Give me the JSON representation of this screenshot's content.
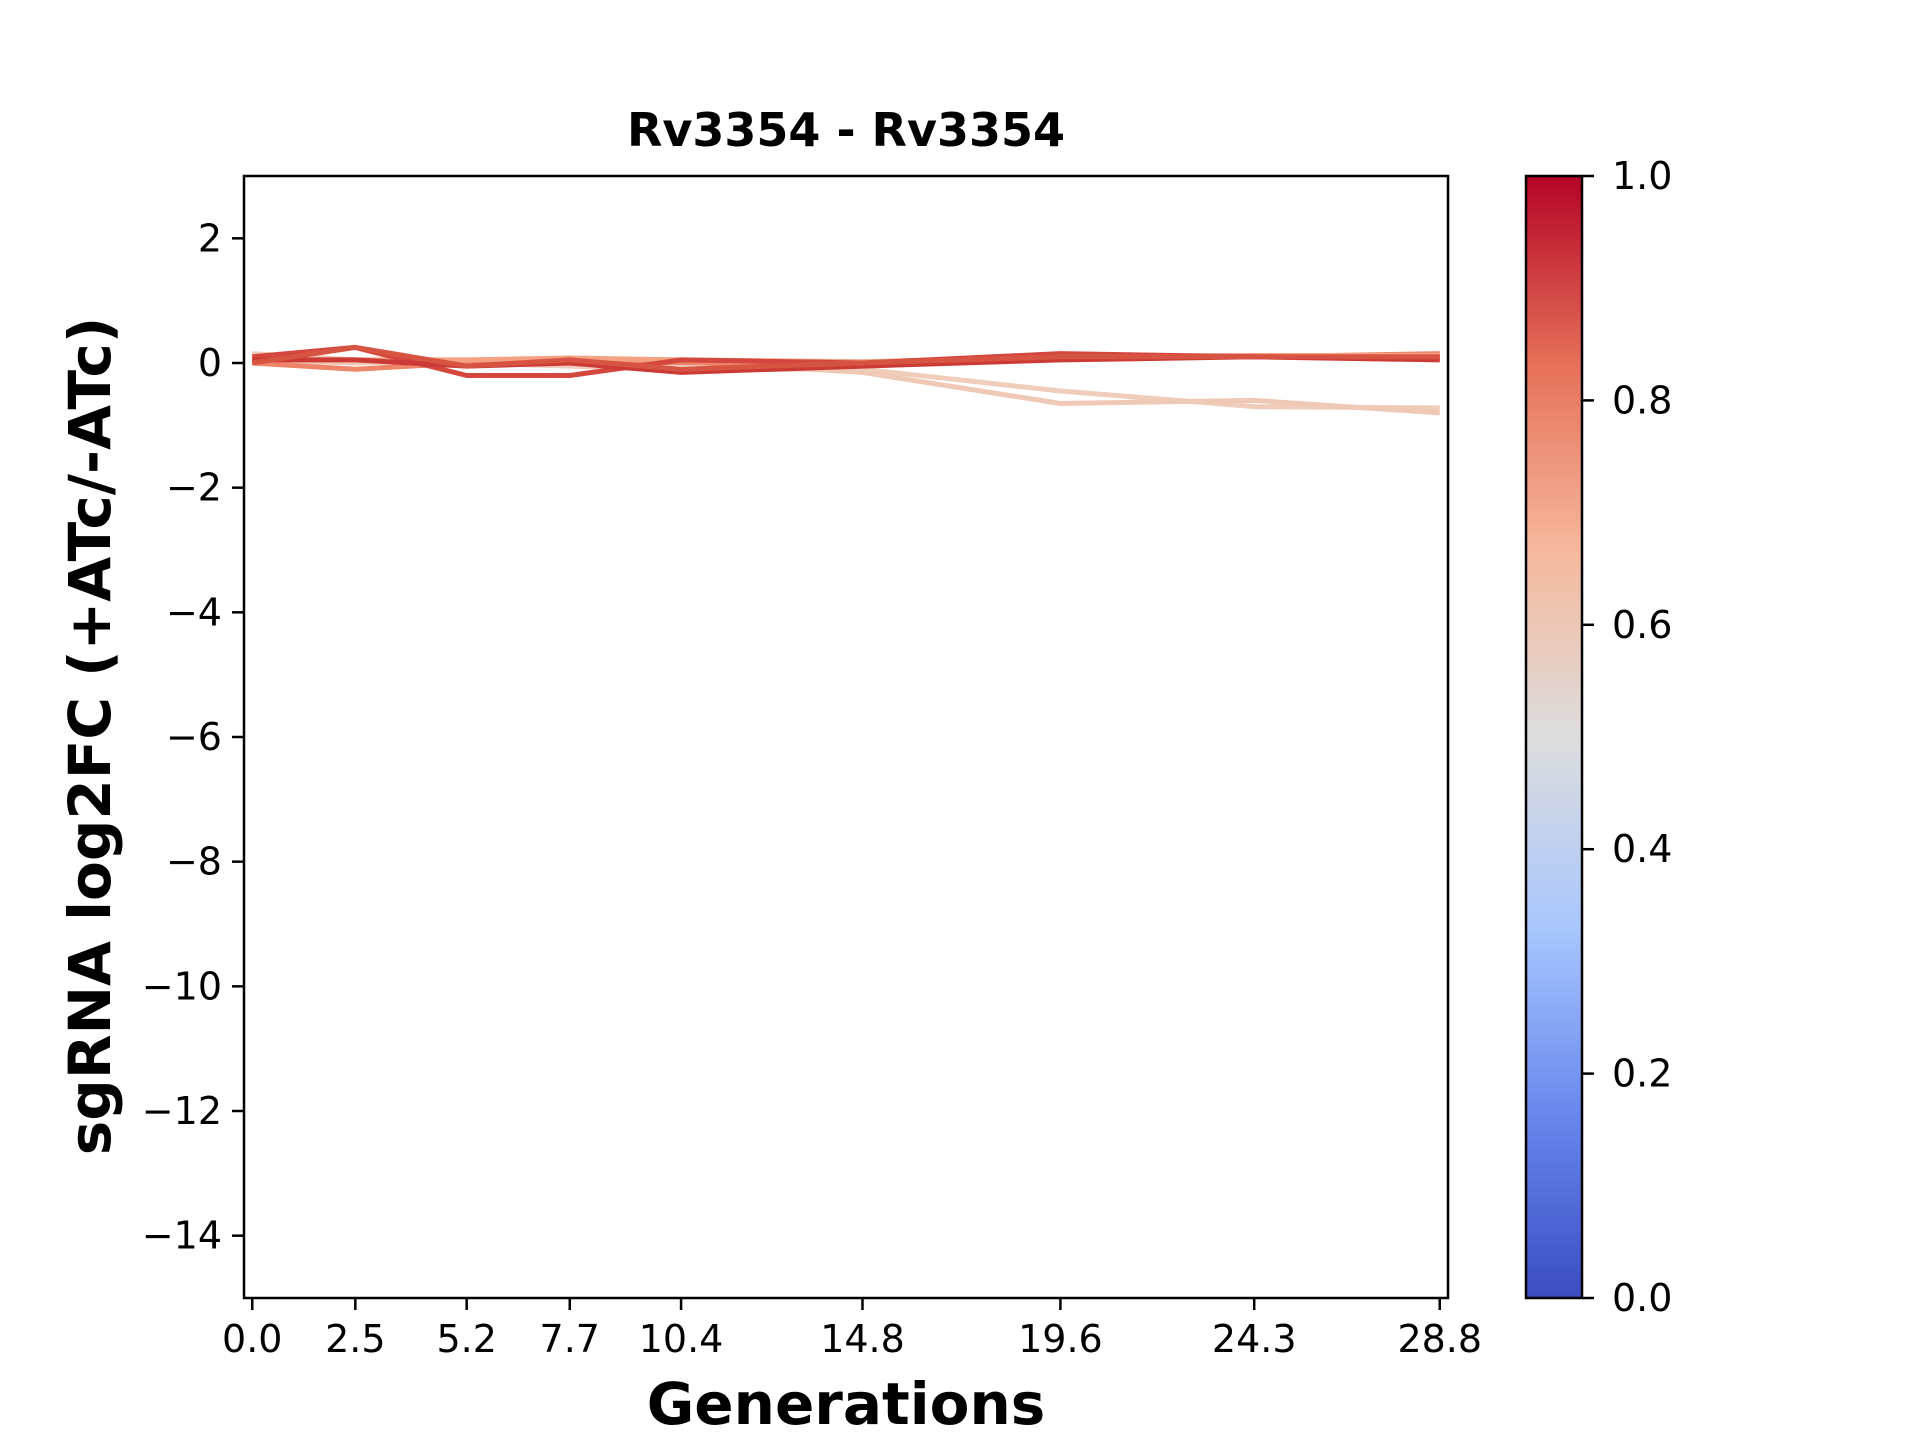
{
  "chart_data": {
    "type": "line",
    "title": "Rv3354 - Rv3354",
    "xlabel": "Generations",
    "ylabel": "sgRNA log2FC (+ATc/-ATc)",
    "x": [
      0.0,
      2.5,
      5.2,
      7.7,
      10.4,
      14.8,
      19.6,
      24.3,
      28.8
    ],
    "xticks": [
      "0.0",
      "2.5",
      "5.2",
      "7.7",
      "10.4",
      "14.8",
      "19.6",
      "24.3",
      "28.8"
    ],
    "yticks": [
      "2",
      "0",
      "−2",
      "−4",
      "−6",
      "−8",
      "−10",
      "−12",
      "−14"
    ],
    "ylim": [
      -15,
      3
    ],
    "grid": false,
    "colorbar": {
      "range": [
        0.0,
        1.0
      ],
      "ticks": [
        "0.0",
        "0.2",
        "0.4",
        "0.6",
        "0.8",
        "1.0"
      ],
      "colormap": "coolwarm",
      "colors": [
        "#3b4cc0",
        "#6889ee",
        "#aac7fd",
        "#dddddd",
        "#f6b89c",
        "#e57058",
        "#b40426"
      ]
    },
    "series": [
      {
        "color_value": 0.62,
        "color": "#f0cdbb",
        "values": [
          0.15,
          0.05,
          0.0,
          -0.05,
          -0.1,
          -0.1,
          -0.45,
          -0.7,
          -0.72
        ]
      },
      {
        "color_value": 0.6,
        "color": "#efc9b5",
        "values": [
          0.05,
          0.0,
          0.05,
          0.0,
          0.02,
          -0.15,
          -0.65,
          -0.6,
          -0.8
        ]
      },
      {
        "color_value": 0.8,
        "color": "#ee8468",
        "values": [
          0.0,
          -0.1,
          0.0,
          0.05,
          0.0,
          0.0,
          0.1,
          0.1,
          0.15
        ]
      },
      {
        "color_value": 0.72,
        "color": "#f3a282",
        "values": [
          0.05,
          0.05,
          0.05,
          0.08,
          0.05,
          0.02,
          0.1,
          0.12,
          0.12
        ]
      },
      {
        "color_value": 0.9,
        "color": "#d4473e",
        "values": [
          0.1,
          0.25,
          -0.2,
          -0.2,
          0.05,
          0.0,
          0.15,
          0.1,
          0.08
        ]
      },
      {
        "color_value": 0.92,
        "color": "#cc3a36",
        "values": [
          0.05,
          0.05,
          -0.05,
          0.0,
          -0.15,
          -0.05,
          0.05,
          0.1,
          0.05
        ]
      },
      {
        "color_value": 0.88,
        "color": "#d85442",
        "values": [
          0.0,
          0.25,
          -0.05,
          0.05,
          -0.1,
          0.0,
          0.1,
          0.1,
          0.1
        ]
      }
    ]
  }
}
